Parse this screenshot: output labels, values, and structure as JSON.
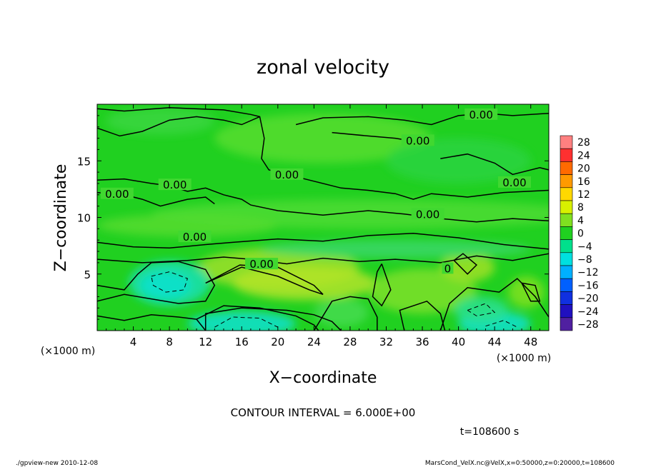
{
  "chart_data": {
    "type": "heatmap",
    "title": "zonal velocity",
    "xlabel": "X−coordinate",
    "ylabel": "Z−coordinate",
    "x_unit_label": "(×1000 m)",
    "x_unit_label_right": "(×1000 m)",
    "xlim": [
      0,
      50
    ],
    "ylim": [
      0,
      20
    ],
    "x_ticks": [
      4,
      8,
      12,
      16,
      20,
      24,
      28,
      32,
      36,
      40,
      44,
      48
    ],
    "x_tick_labels": [
      "4",
      "8",
      "12",
      "16",
      "20",
      "24",
      "28",
      "32",
      "36",
      "40",
      "44",
      "48"
    ],
    "y_ticks": [
      5,
      10,
      15
    ],
    "y_tick_labels": [
      "5",
      "10",
      "15"
    ],
    "colorbar": {
      "levels": [
        28,
        24,
        20,
        16,
        12,
        8,
        4,
        0,
        -4,
        -8,
        -12,
        -16,
        -20,
        -24,
        -28
      ],
      "labels": [
        "28",
        "24",
        "20",
        "16",
        "12",
        "8",
        "4",
        "0",
        "−4",
        "−8",
        "−12",
        "−16",
        "−20",
        "−24",
        "−28"
      ],
      "colors": [
        "#ff8080",
        "#ff3030",
        "#ff6a00",
        "#ff9a00",
        "#ffd800",
        "#d8f000",
        "#80e020",
        "#20d020",
        "#00e08c",
        "#00e0e0",
        "#00b0ff",
        "#0060ff",
        "#1030e0",
        "#2010c0",
        "#5020a0"
      ]
    },
    "contour_interval_text": "CONTOUR INTERVAL = 6.000E+00",
    "contour_labels": [
      {
        "text": "0.00",
        "x": 42.5,
        "z": 19.0
      },
      {
        "text": "0.00",
        "x": 35.5,
        "z": 16.7
      },
      {
        "text": "0.00",
        "x": 21.0,
        "z": 13.7
      },
      {
        "text": "0.00",
        "x": 8.6,
        "z": 12.8
      },
      {
        "text": "0.00",
        "x": 2.2,
        "z": 12.0
      },
      {
        "text": "0.00",
        "x": 46.2,
        "z": 13.0
      },
      {
        "text": "0.00",
        "x": 36.6,
        "z": 10.2
      },
      {
        "text": "0.00",
        "x": 10.8,
        "z": 8.2
      },
      {
        "text": "0.00",
        "x": 18.2,
        "z": 5.8
      },
      {
        "text": "0",
        "x": 38.8,
        "z": 5.4
      }
    ],
    "grid": false
  },
  "time_label": "t=108600 s",
  "footer": {
    "left": "./gpview-new   2010-12-08",
    "right": "MarsCond_VelX.nc@VelX,x=0:50000,z=0:20000,t=108600"
  }
}
